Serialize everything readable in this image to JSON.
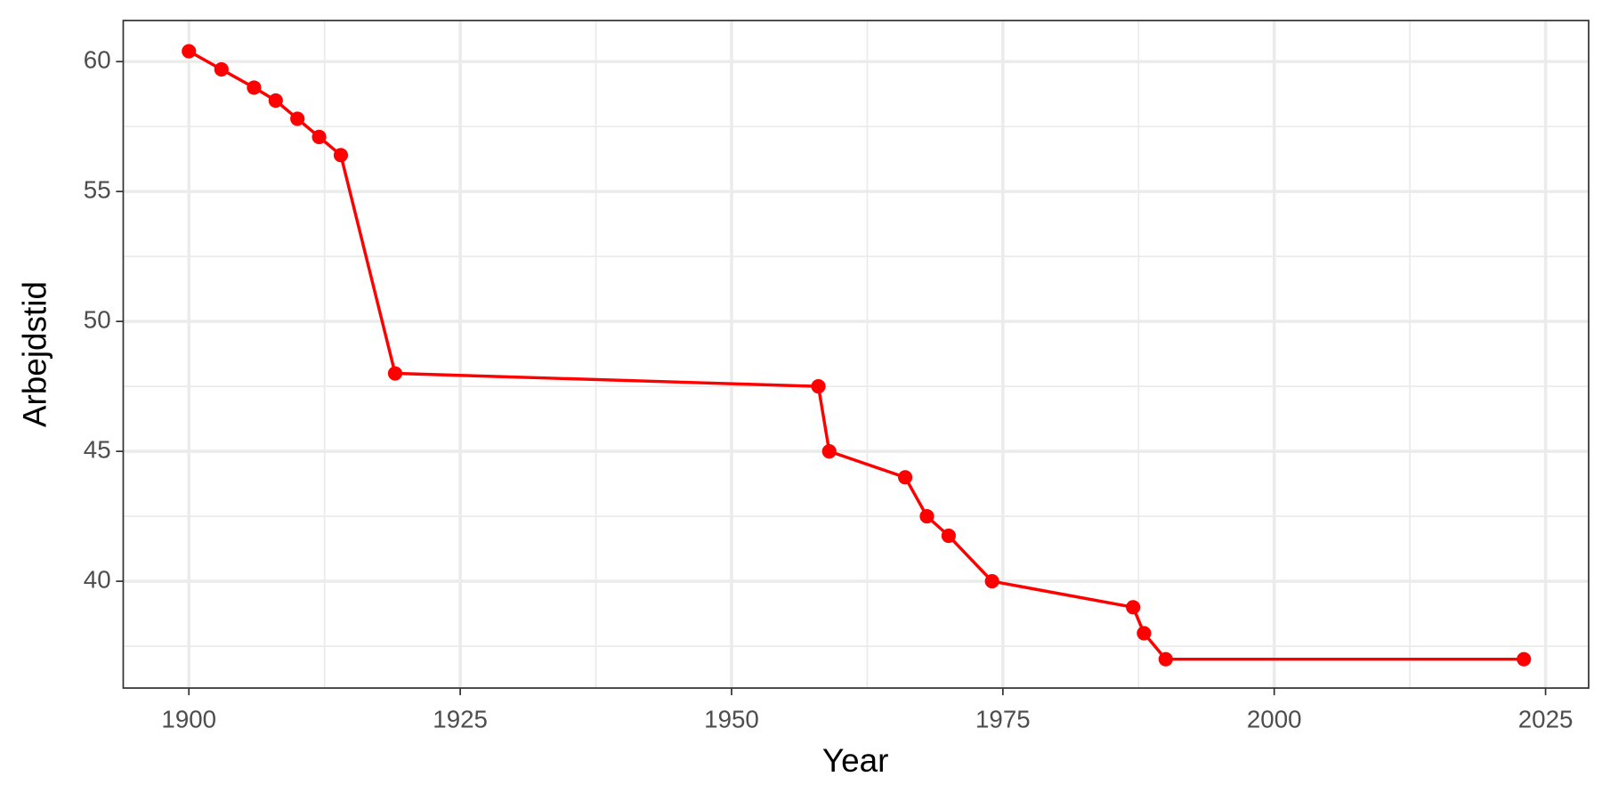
{
  "chart_data": {
    "type": "line",
    "x_label": "Year",
    "y_label": "Arbejdstid",
    "x": [
      1900,
      1903,
      1906,
      1908,
      1910,
      1912,
      1914,
      1919,
      1958,
      1959,
      1966,
      1968,
      1970,
      1974,
      1987,
      1988,
      1990,
      2023
    ],
    "series": [
      {
        "color": "#ff0000",
        "values": [
          60.4,
          59.7,
          59.0,
          58.5,
          57.8,
          57.1,
          56.4,
          48.0,
          47.5,
          45.0,
          44.0,
          42.5,
          41.75,
          40.0,
          39.0,
          38.0,
          37.0,
          37.0
        ]
      }
    ],
    "xlim": [
      1893.95,
      2028.97
    ],
    "ylim": [
      35.89,
      61.58
    ],
    "xticks": [
      1900,
      1925,
      1950,
      1975,
      2000,
      2025
    ],
    "yticks": [
      40,
      45,
      50,
      55,
      60
    ],
    "grid": true
  }
}
